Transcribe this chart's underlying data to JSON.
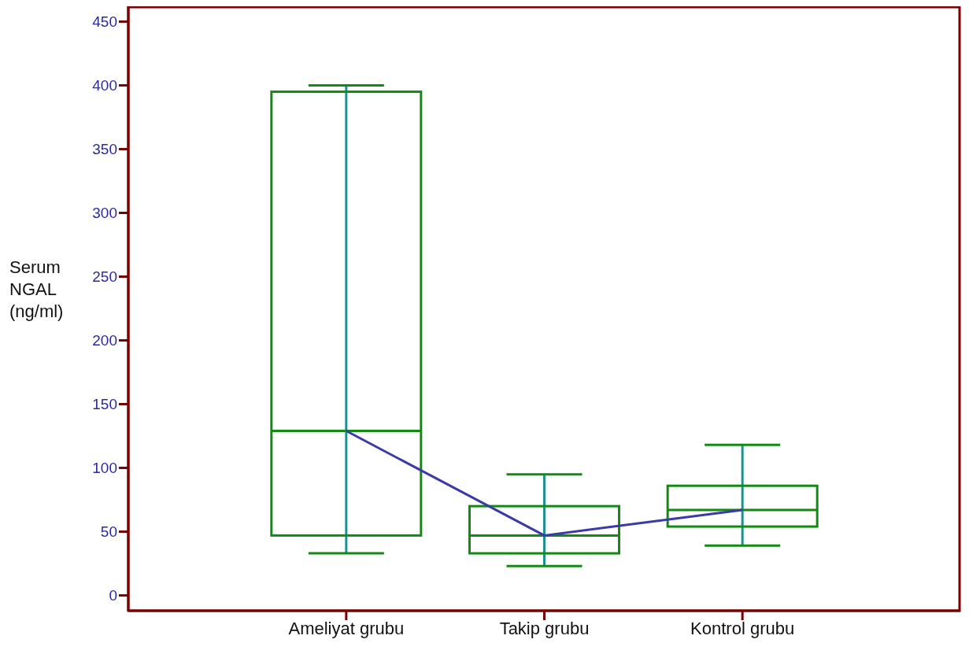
{
  "chart_data": {
    "type": "box",
    "ylabel": "Serum NGAL (ng/ml)",
    "categories": [
      "Ameliyat grubu",
      "Takip grubu",
      "Kontrol grubu"
    ],
    "color": "#138a13",
    "boxes": [
      {
        "low": 33,
        "q1": 47,
        "median": 129,
        "q3": 395,
        "high": 400
      },
      {
        "low": 23,
        "q1": 33,
        "median": 47,
        "q3": 70,
        "high": 95
      },
      {
        "low": 39,
        "q1": 54,
        "median": 67,
        "q3": 86,
        "high": 118
      }
    ],
    "series": [
      {
        "type": "line",
        "color": "#3a3aa8",
        "values": [
          129,
          47,
          67
        ]
      }
    ],
    "ylim": [
      -12,
      462
    ],
    "yticks": [
      0,
      50,
      100,
      150,
      200,
      250,
      300,
      350,
      400,
      450
    ],
    "grid": false,
    "marker": "none"
  }
}
